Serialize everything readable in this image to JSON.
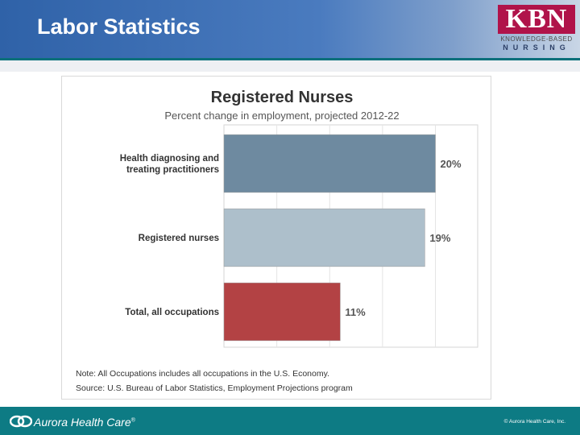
{
  "slide": {
    "title": "Labor Statistics"
  },
  "logo": {
    "main": "KBN",
    "line1": "KNOWLEDGE-BASED",
    "line2": "NURSING"
  },
  "footer": {
    "brand": "Aurora Health Care",
    "brand_mark": "®",
    "copyright": "© Aurora Health Care, Inc."
  },
  "colors": {
    "header_blue": "#2f62a8",
    "footer_teal": "#0d7b84",
    "logo_magenta": "#b0134a"
  },
  "chart_data": {
    "type": "bar",
    "orientation": "horizontal",
    "title": "Registered Nurses",
    "subtitle": "Percent change in employment, projected 2012-22",
    "categories": [
      "Health diagnosing and treating practitioners",
      "Registered nurses",
      "Total, all occupations"
    ],
    "values": [
      20,
      19,
      11
    ],
    "value_labels": [
      "20%",
      "19%",
      "11%"
    ],
    "bar_colors": [
      "#6e8aa0",
      "#adbfcb",
      "#b34244"
    ],
    "xlim": [
      0,
      24
    ],
    "grid": true,
    "note": "Note: All Occupations includes all occupations in the U.S. Economy.",
    "source": "Source: U.S. Bureau of Labor Statistics, Employment Projections program"
  }
}
